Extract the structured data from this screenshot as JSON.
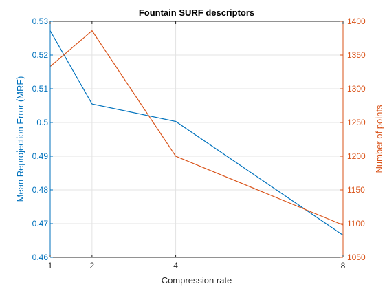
{
  "chart_data": {
    "type": "line",
    "title": "Fountain SURF descriptors",
    "xlabel": "Compression rate",
    "ylabel_left": "Mean Reprojection Error (MRE)",
    "ylabel_right": "Number of points",
    "x": [
      1,
      2,
      4,
      8
    ],
    "x_ticks": [
      "1",
      "2",
      "4",
      "8"
    ],
    "xlim": [
      1,
      8
    ],
    "ylim_left": [
      0.46,
      0.53
    ],
    "ylim_right": [
      1050,
      1400
    ],
    "y_ticks_left": [
      "0.46",
      "0.47",
      "0.48",
      "0.49",
      "0.5",
      "0.51",
      "0.52",
      "0.53"
    ],
    "y_ticks_right": [
      "1050",
      "1100",
      "1150",
      "1200",
      "1250",
      "1300",
      "1350",
      "1400"
    ],
    "grid": true,
    "series": [
      {
        "axis": "left",
        "color": "#0072BD",
        "values": [
          0.5272,
          0.5055,
          0.5003,
          0.4666
        ]
      },
      {
        "axis": "right",
        "color": "#D95319",
        "values": [
          1333,
          1386,
          1200,
          1098
        ]
      }
    ],
    "colors": {
      "left_axis": "#0072BD",
      "right_axis": "#D95319",
      "grid": "#e3e3e3",
      "box": "#262626"
    }
  }
}
